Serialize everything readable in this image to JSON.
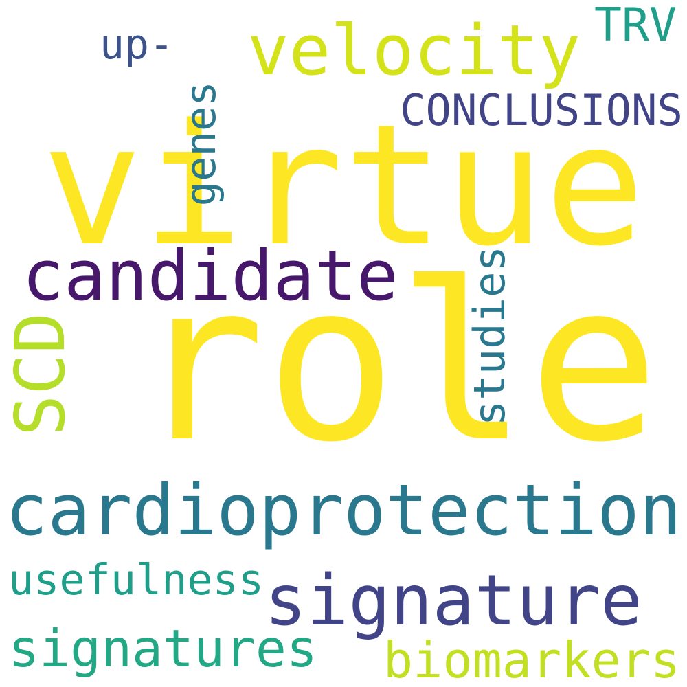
{
  "words": [
    {
      "text": "virtue",
      "color": "#fde725"
    },
    {
      "text": "role",
      "color": "#fde725"
    },
    {
      "text": "cardioprotection",
      "color": "#2a788e"
    },
    {
      "text": "candidate",
      "color": "#46176a"
    },
    {
      "text": "signature",
      "color": "#414487"
    },
    {
      "text": "velocity",
      "color": "#d4e21a"
    },
    {
      "text": "CONCLUSIONS",
      "color": "#414487"
    },
    {
      "text": "TRV",
      "color": "#1f9e89"
    },
    {
      "text": "up-",
      "color": "#3b528b"
    },
    {
      "text": "genes",
      "color": "#2a788e"
    },
    {
      "text": "studies",
      "color": "#2a788e"
    },
    {
      "text": "SCD",
      "color": "#b5de2b"
    },
    {
      "text": "usefulness",
      "color": "#1f9e89"
    },
    {
      "text": "signatures",
      "color": "#22a884"
    },
    {
      "text": "biomarkers",
      "color": "#c2df23"
    }
  ]
}
